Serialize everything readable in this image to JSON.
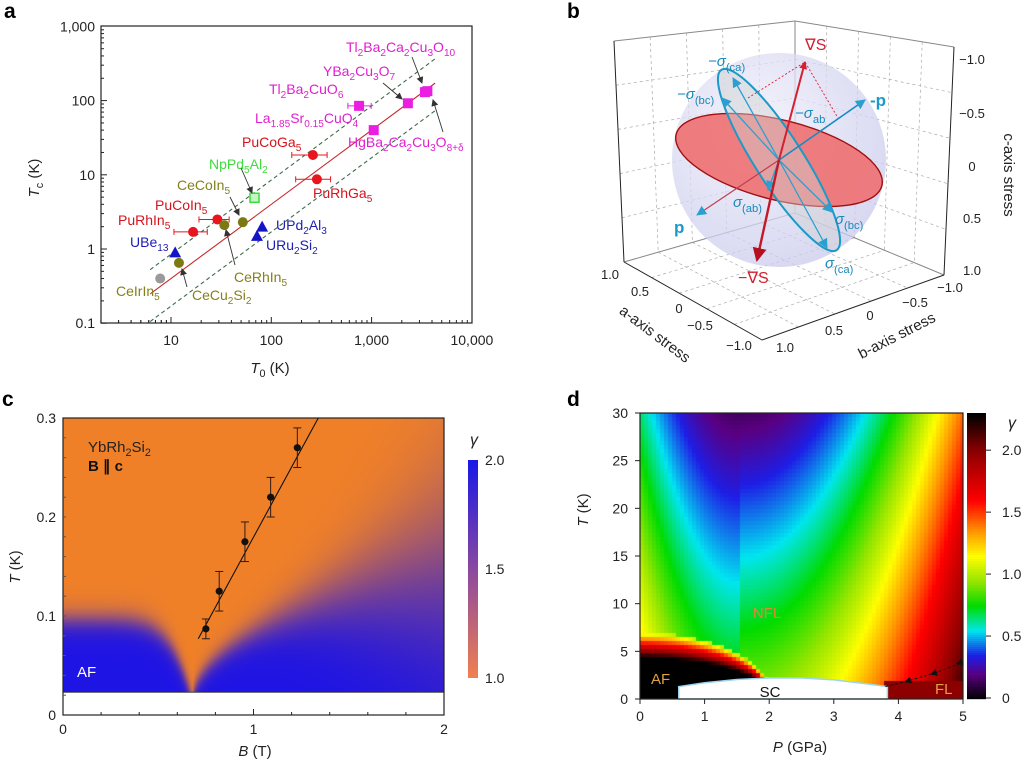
{
  "panel_letters": [
    "a",
    "b",
    "c",
    "d"
  ],
  "chart_data": [
    {
      "panel": "a",
      "type": "scatter",
      "x_scale": "log",
      "y_scale": "log",
      "xlim": [
        2,
        10000
      ],
      "ylim": [
        0.1,
        1000
      ],
      "xlabel": {
        "var": "T",
        "sub": "0",
        "unit": " (K)"
      },
      "ylabel": {
        "var": "T",
        "sub": "c",
        "unit": " (K)"
      },
      "xticks": [
        {
          "value": 10,
          "label": "10"
        },
        {
          "value": 100,
          "label": "100"
        },
        {
          "value": 1000,
          "label": "1,000"
        },
        {
          "value": 10000,
          "label": "10,000"
        }
      ],
      "yticks": [
        {
          "value": 0.1,
          "label": "0.1"
        },
        {
          "value": 1,
          "label": "1"
        },
        {
          "value": 10,
          "label": "10"
        },
        {
          "value": 100,
          "label": "100"
        },
        {
          "value": 1000,
          "label": "1,000"
        }
      ],
      "groups": {
        "Pu": {
          "marker": "circle",
          "color": "#e8141e",
          "label_color": "#d4141e"
        },
        "Ce": {
          "marker": "circle",
          "color": "#7b7a12",
          "label_color": "#85801c"
        },
        "Ir": {
          "marker": "circle",
          "color": "#9a9a9a",
          "label_color": "#85801c"
        },
        "U": {
          "marker": "triangle",
          "color": "#1515c8",
          "label_color": "#1e1eb4"
        },
        "Np": {
          "marker": "square-open",
          "color": "#3cdc3c",
          "label_color": "#3cdc3c"
        },
        "cuprate": {
          "marker": "square",
          "color": "#e91ee0",
          "label_color": "#e020d0"
        }
      },
      "points": [
        {
          "label": "CeIrIn5",
          "x": 7.8,
          "y": 0.4,
          "group": "Ir"
        },
        {
          "label": "CeCu2Si2",
          "x": 12,
          "y": 0.65,
          "group": "Ce"
        },
        {
          "label": "UBe13",
          "x": 11,
          "y": 0.9,
          "group": "U"
        },
        {
          "label": "PuRhIn5",
          "x": 16.6,
          "y": 1.7,
          "xerr": [
            10.7,
            23
          ],
          "group": "Pu"
        },
        {
          "label": "PuCoIn5",
          "x": 29,
          "y": 2.5,
          "xerr": [
            19,
            38
          ],
          "group": "Pu"
        },
        {
          "label": "CeRhIn5",
          "x": 34,
          "y": 2.1,
          "group": "Ce"
        },
        {
          "label": "CeCoIn5",
          "x": 52,
          "y": 2.3,
          "group": "Ce"
        },
        {
          "label": "NpPd5Al2",
          "x": 68,
          "y": 4.9,
          "group": "Np"
        },
        {
          "label": "UPd2Al3",
          "x": 81,
          "y": 2.0,
          "group": "U"
        },
        {
          "label": "URu2Si2",
          "x": 72,
          "y": 1.5,
          "group": "U"
        },
        {
          "label": "PuCoGa5",
          "x": 260,
          "y": 18.5,
          "xerr": [
            160,
            360
          ],
          "group": "Pu"
        },
        {
          "label": "PuRhGa5",
          "x": 285,
          "y": 8.7,
          "xerr": [
            175,
            390
          ],
          "group": "Pu"
        },
        {
          "label": "Tl2Ba2CuO6",
          "x": 750,
          "y": 85,
          "xerr": [
            580,
            990
          ],
          "group": "cuprate"
        },
        {
          "label": "La1.85Sr0.15CuO4",
          "x": 1050,
          "y": 40,
          "group": "cuprate"
        },
        {
          "label": "YBa2Cu3O7",
          "x": 2300,
          "y": 92,
          "group": "cuprate"
        },
        {
          "label": "Tl2Ba2Ca2Cu3O10",
          "x": 3400,
          "y": 130,
          "group": "cuprate"
        },
        {
          "label": "HgBa2Ca2Cu3O8+δ",
          "x": 3600,
          "y": 134,
          "group": "cuprate"
        }
      ],
      "reference_lines": [
        {
          "ratio_Tc_over_T0": 0.04,
          "style": "solid",
          "color": "#c8282e"
        },
        {
          "ratio_Tc_over_T0": 0.085,
          "style": "dashed",
          "color": "#3d6b4c"
        },
        {
          "ratio_Tc_over_T0": 0.017,
          "style": "dashed",
          "color": "#3d6b4c"
        }
      ],
      "grid": false
    },
    {
      "panel": "b",
      "type": "diagram-3d",
      "axes": [
        {
          "label": "a-axis stress",
          "ticks": [
            "1.0",
            "0.5",
            "0",
            "−0.5",
            "−1.0"
          ]
        },
        {
          "label": "b-axis stress",
          "ticks": [
            "1.0",
            "0.5",
            "0",
            "−0.5",
            "−1.0"
          ]
        },
        {
          "label": "c-axis stress",
          "ticks": [
            "−1.0",
            "−0.5",
            "0",
            "0.5",
            "1.0"
          ]
        }
      ],
      "vectors": {
        "grad_s": "∇S",
        "neg_grad_s": "−∇S",
        "p": "p",
        "neg_p": "-p"
      },
      "sigma_labels": [
        {
          "main": "−σ",
          "sub": "(ca)"
        },
        {
          "main": "−σ",
          "sub": "(bc)"
        },
        {
          "main": "−σ",
          "sub": "ab"
        },
        {
          "main": "σ",
          "sub": "(ab)"
        },
        {
          "main": "σ",
          "sub": "(bc)"
        },
        {
          "main": "σ",
          "sub": "(ca)"
        }
      ],
      "colors": {
        "grad": "#d42030",
        "plane": "#f07070",
        "stress": "#1a9ac8",
        "sphere": "#d8d8f2"
      },
      "grid": true
    },
    {
      "panel": "c",
      "type": "heatmap",
      "xlim": [
        0,
        2
      ],
      "ylim": [
        0,
        0.3
      ],
      "xlabel": {
        "var": "B",
        "sub": "",
        "unit": " (T)"
      },
      "ylabel": {
        "var": "T",
        "sub": "",
        "unit": " (K)"
      },
      "xticks": [
        {
          "value": 0,
          "label": "0"
        },
        {
          "value": 1,
          "label": "1"
        },
        {
          "value": 2,
          "label": "2"
        }
      ],
      "yticks": [
        {
          "value": 0,
          "label": "0"
        },
        {
          "value": 0.1,
          "label": "0.1"
        },
        {
          "value": 0.2,
          "label": "0.2"
        },
        {
          "value": 0.3,
          "label": "0.3"
        }
      ],
      "data_lower_T_limit": 0.023,
      "colorbar": {
        "label": "γ",
        "range": [
          1.0,
          2.0
        ],
        "ticks": [
          {
            "value": 2.0,
            "label": "2.0"
          },
          {
            "value": 1.5,
            "label": "1.5"
          },
          {
            "value": 1.0,
            "label": "1.0"
          }
        ],
        "low_color": "#f08050",
        "high_color": "#1818e6"
      },
      "annotations": {
        "compound": "YbRh2Si2",
        "field": "B ∥ c",
        "phase": "AF"
      },
      "points": [
        {
          "x": 0.75,
          "y": 0.087,
          "yerr": 0.01
        },
        {
          "x": 0.82,
          "y": 0.125,
          "yerr": 0.02
        },
        {
          "x": 0.955,
          "y": 0.175,
          "yerr": 0.02
        },
        {
          "x": 1.09,
          "y": 0.22,
          "yerr": 0.02
        },
        {
          "x": 1.23,
          "y": 0.27,
          "yerr": 0.02
        }
      ],
      "fit_line": {
        "x": [
          0.71,
          1.34
        ],
        "y": [
          0.077,
          0.3
        ]
      }
    },
    {
      "panel": "d",
      "type": "heatmap",
      "xlim": [
        0,
        5
      ],
      "ylim": [
        0,
        30
      ],
      "xlabel": {
        "var": "P",
        "sub": "",
        "unit": " (GPa)"
      },
      "ylabel": {
        "var": "T",
        "sub": "",
        "unit": " (K)"
      },
      "xticks": [
        {
          "value": 0,
          "label": "0"
        },
        {
          "value": 1,
          "label": "1"
        },
        {
          "value": 2,
          "label": "2"
        },
        {
          "value": 3,
          "label": "3"
        },
        {
          "value": 4,
          "label": "4"
        },
        {
          "value": 5,
          "label": "5"
        }
      ],
      "yticks": [
        {
          "value": 0,
          "label": "0"
        },
        {
          "value": 5,
          "label": "5"
        },
        {
          "value": 10,
          "label": "10"
        },
        {
          "value": 15,
          "label": "15"
        },
        {
          "value": 20,
          "label": "20"
        },
        {
          "value": 25,
          "label": "25"
        },
        {
          "value": 30,
          "label": "30"
        }
      ],
      "colorbar": {
        "label": "γ",
        "range": [
          0,
          2.3
        ],
        "ticks": [
          {
            "value": 2.0,
            "label": "2.0"
          },
          {
            "value": 1.5,
            "label": "1.5"
          },
          {
            "value": 1.0,
            "label": "1.0"
          },
          {
            "value": 0.5,
            "label": "0.5"
          },
          {
            "value": 0,
            "label": "0"
          }
        ]
      },
      "regions": {
        "af": "AF",
        "sc": "SC",
        "nfl": "NFL",
        "fl": "FL"
      },
      "sc_dome": {
        "p": [
          0.6,
          1.0,
          1.5,
          2.0,
          2.5,
          3.0,
          3.5,
          3.83
        ],
        "tc": [
          1.3,
          1.7,
          2.05,
          2.2,
          2.2,
          2.0,
          1.6,
          1.3
        ]
      },
      "fl_boundary": {
        "p": [
          3.8,
          4.2,
          4.6,
          5.0
        ],
        "t": [
          1.3,
          2.0,
          2.8,
          3.9
        ]
      }
    }
  ]
}
